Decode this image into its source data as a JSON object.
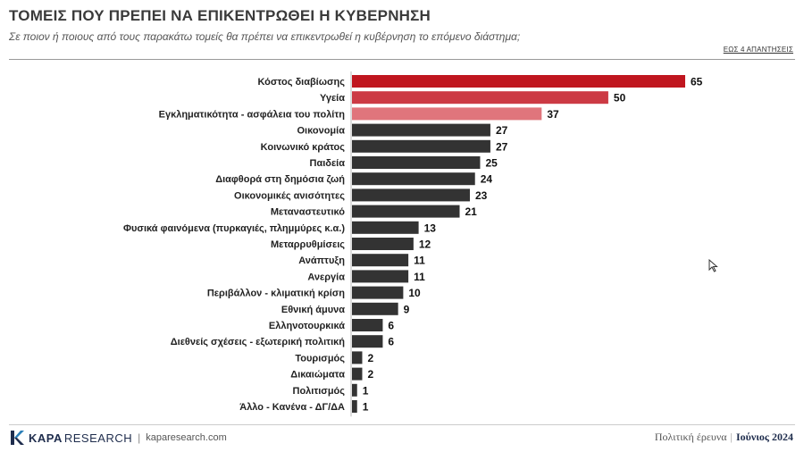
{
  "header": {
    "title": "ΤΟΜΕΙΣ ΠΟΥ ΠΡΕΠΕΙ ΝΑ ΕΠΙΚΕΝΤΡΩΘΕΙ Η ΚΥΒΕΡΝΗΣΗ",
    "subtitle": "Σε ποιον ή ποιους από τους παρακάτω τομείς θα πρέπει να επικεντρωθεί η κυβέρνηση το επόμενο διάστημα;",
    "note": "ΕΩΣ 4 ΑΠΑΝΤΗΣΕΙΣ"
  },
  "chart_data": {
    "type": "bar",
    "orientation": "horizontal",
    "categories": [
      "Κόστος διαβίωσης",
      "Υγεία",
      "Εγκληματικότητα - ασφάλεια του πολίτη",
      "Οικονομία",
      "Κοινωνικό κράτος",
      "Παιδεία",
      "Διαφθορά στη δημόσια ζωή",
      "Οικονομικές ανισότητες",
      "Μεταναστευτικό",
      "Φυσικά φαινόμενα (πυρκαγιές, πλημμύρες κ.α.)",
      "Μεταρρυθμίσεις",
      "Ανάπτυξη",
      "Ανεργία",
      "Περιβάλλον - κλιματική κρίση",
      "Εθνική άμυνα",
      "Ελληνοτουρκικά",
      "Διεθνείς σχέσεις - εξωτερική πολιτική",
      "Τουρισμός",
      "Δικαιώματα",
      "Πολιτισμός",
      "Άλλο - Κανένα - ΔΓ/ΔΑ"
    ],
    "values": [
      65,
      50,
      37,
      27,
      27,
      25,
      24,
      23,
      21,
      13,
      12,
      11,
      11,
      10,
      9,
      6,
      6,
      2,
      2,
      1,
      1
    ],
    "bar_colors": [
      "#c0161f",
      "#cc3a44",
      "#e0757c",
      "#333333",
      "#333333",
      "#333333",
      "#333333",
      "#333333",
      "#333333",
      "#333333",
      "#333333",
      "#333333",
      "#333333",
      "#333333",
      "#333333",
      "#333333",
      "#333333",
      "#333333",
      "#333333",
      "#333333",
      "#333333"
    ],
    "xlim": [
      0,
      65
    ],
    "grid": false,
    "legend": "none"
  },
  "footer": {
    "brand_bold": "KAPA",
    "brand_light": "RESEARCH",
    "separator": "|",
    "website": "kaparesearch.com",
    "survey": "Πολιτική έρευνα",
    "pipe": "|",
    "date": "Ιούνιος 2024"
  },
  "colors": {
    "accent": "#c0161f",
    "dark_bar": "#333333",
    "brand": "#1f2d4d"
  }
}
